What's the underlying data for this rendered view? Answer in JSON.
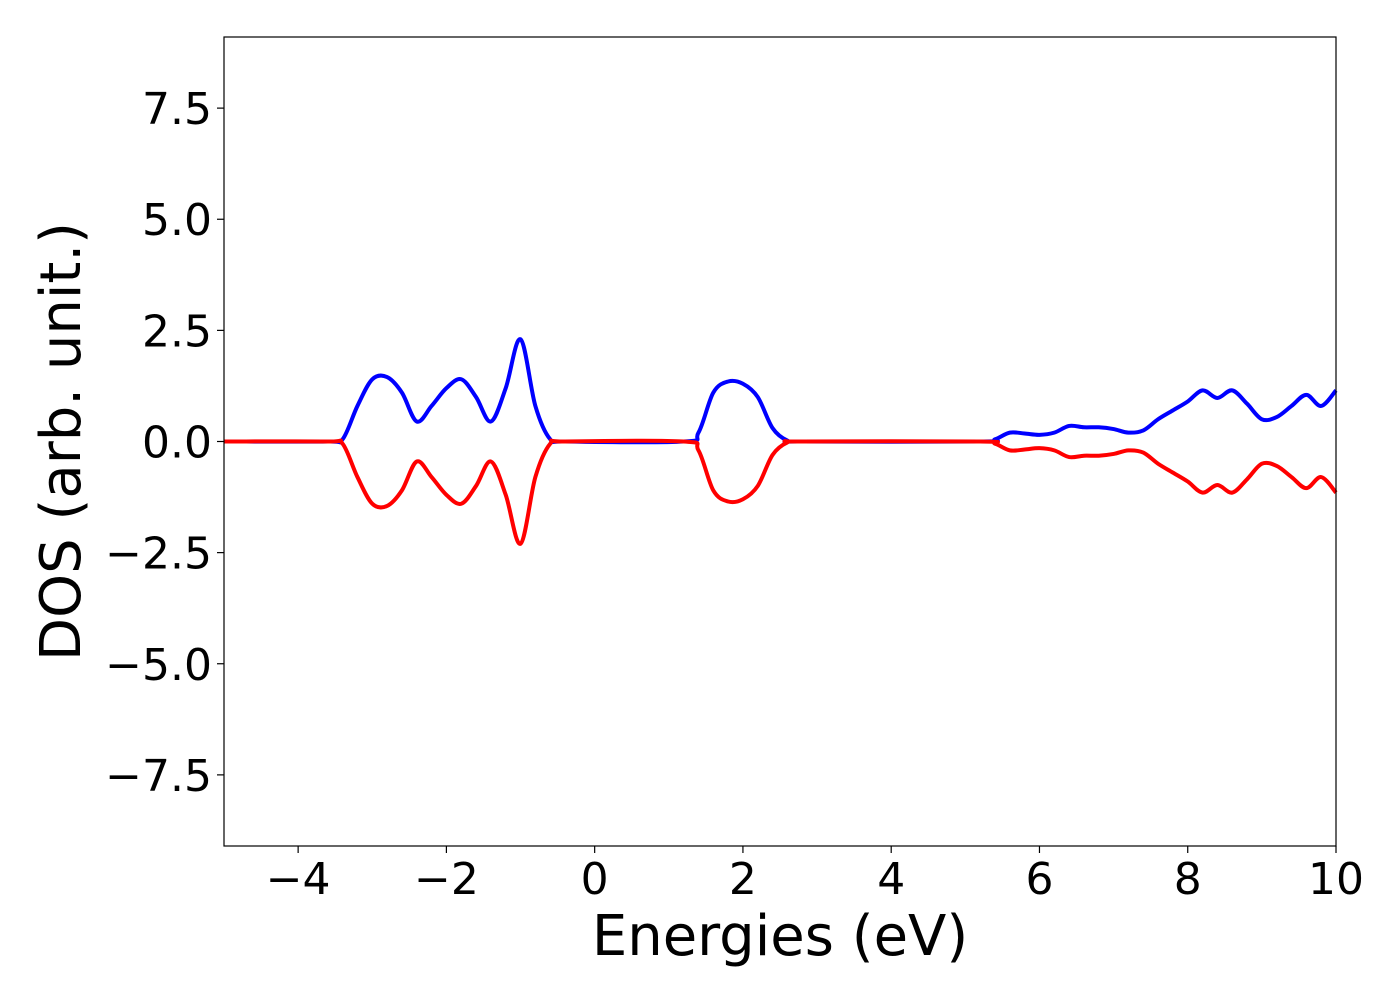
{
  "chart_data": {
    "type": "line",
    "title": "",
    "xlabel": "Energies (eV)",
    "ylabel": "DOS (arb. unit.)",
    "xlim": [
      -5,
      10
    ],
    "ylim": [
      -9.1,
      9.1
    ],
    "xticks": [
      -4,
      -2,
      0,
      2,
      4,
      6,
      8,
      10
    ],
    "xtick_labels": [
      "−4",
      "−2",
      "0",
      "2",
      "4",
      "6",
      "8",
      "10"
    ],
    "yticks": [
      7.5,
      5.0,
      2.5,
      0.0,
      -2.5,
      -5.0,
      -7.5
    ],
    "ytick_labels": [
      "7.5",
      "5.0",
      "2.5",
      "0.0",
      "−2.5",
      "−5.0",
      "−7.5"
    ],
    "grid": false,
    "series": [
      {
        "color": "#0000ff",
        "x": [
          -5.0,
          -3.6,
          -3.4,
          -3.2,
          -3.0,
          -2.8,
          -2.6,
          -2.4,
          -2.2,
          -2.0,
          -1.8,
          -1.6,
          -1.4,
          -1.2,
          -1.0,
          -0.8,
          -0.6,
          -0.4,
          1.2,
          1.4,
          1.6,
          1.8,
          2.0,
          2.2,
          2.4,
          2.6,
          2.8,
          5.2,
          5.4,
          5.6,
          5.8,
          6.0,
          6.2,
          6.4,
          6.6,
          6.8,
          7.0,
          7.2,
          7.4,
          7.6,
          7.8,
          8.0,
          8.2,
          8.4,
          8.6,
          8.8,
          9.0,
          9.2,
          9.4,
          9.6,
          9.8,
          10.0
        ],
        "y": [
          0.0,
          0.0,
          0.05,
          0.8,
          1.4,
          1.45,
          1.1,
          0.45,
          0.8,
          1.2,
          1.4,
          1.0,
          0.45,
          1.2,
          2.3,
          0.8,
          0.05,
          0.0,
          0.0,
          0.2,
          1.1,
          1.35,
          1.3,
          1.0,
          0.3,
          0.02,
          0.0,
          0.0,
          0.05,
          0.2,
          0.18,
          0.15,
          0.2,
          0.35,
          0.32,
          0.32,
          0.28,
          0.2,
          0.25,
          0.5,
          0.7,
          0.9,
          1.15,
          0.98,
          1.15,
          0.85,
          0.5,
          0.55,
          0.8,
          1.05,
          0.8,
          1.15
        ]
      },
      {
        "color": "#ff0000",
        "x": [
          -5.0,
          -3.6,
          -3.4,
          -3.2,
          -3.0,
          -2.8,
          -2.6,
          -2.4,
          -2.2,
          -2.0,
          -1.8,
          -1.6,
          -1.4,
          -1.2,
          -1.0,
          -0.8,
          -0.6,
          -0.4,
          1.2,
          1.4,
          1.6,
          1.8,
          2.0,
          2.2,
          2.4,
          2.6,
          2.8,
          5.2,
          5.4,
          5.6,
          5.8,
          6.0,
          6.2,
          6.4,
          6.6,
          6.8,
          7.0,
          7.2,
          7.4,
          7.6,
          7.8,
          8.0,
          8.2,
          8.4,
          8.6,
          8.8,
          9.0,
          9.2,
          9.4,
          9.6,
          9.8,
          10.0
        ],
        "y": [
          0.0,
          0.0,
          -0.05,
          -0.8,
          -1.4,
          -1.45,
          -1.1,
          -0.45,
          -0.8,
          -1.2,
          -1.4,
          -1.0,
          -0.45,
          -1.2,
          -2.3,
          -0.8,
          -0.05,
          0.0,
          0.0,
          -0.2,
          -1.1,
          -1.35,
          -1.3,
          -1.0,
          -0.3,
          -0.02,
          0.0,
          0.0,
          -0.05,
          -0.2,
          -0.18,
          -0.15,
          -0.2,
          -0.35,
          -0.32,
          -0.32,
          -0.28,
          -0.2,
          -0.25,
          -0.5,
          -0.7,
          -0.9,
          -1.15,
          -0.98,
          -1.15,
          -0.85,
          -0.5,
          -0.55,
          -0.8,
          -1.05,
          -0.8,
          -1.15
        ]
      }
    ]
  }
}
